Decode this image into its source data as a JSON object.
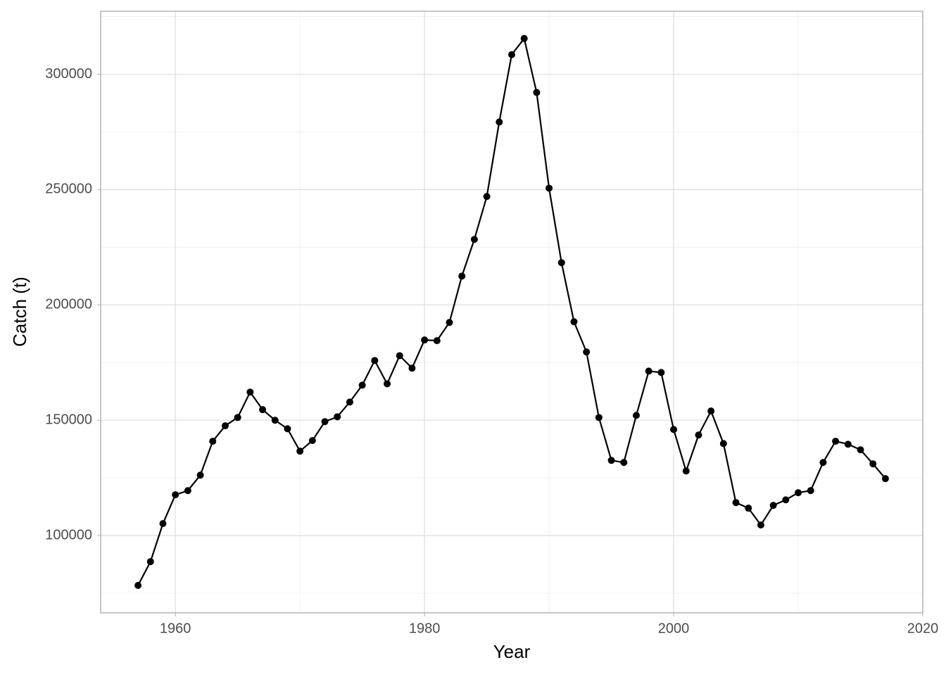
{
  "chart_data": {
    "type": "line",
    "x_label": "Year",
    "y_label": "Catch (t)",
    "x": [
      1957,
      1958,
      1959,
      1960,
      1961,
      1962,
      1963,
      1964,
      1965,
      1966,
      1967,
      1968,
      1969,
      1970,
      1971,
      1972,
      1973,
      1974,
      1975,
      1976,
      1977,
      1978,
      1979,
      1980,
      1981,
      1982,
      1983,
      1984,
      1985,
      1986,
      1987,
      1988,
      1989,
      1990,
      1991,
      1992,
      1993,
      1994,
      1995,
      1996,
      1997,
      1998,
      1999,
      2000,
      2001,
      2002,
      2003,
      2004,
      2005,
      2006,
      2007,
      2008,
      2009,
      2010,
      2011,
      2012,
      2013,
      2014,
      2015,
      2016,
      2017
    ],
    "series": [
      {
        "name": "Catch",
        "color": "#000000",
        "values": [
          78400,
          88700,
          105200,
          117700,
          119500,
          126200,
          140900,
          147600,
          151200,
          162200,
          154600,
          150000,
          146300,
          136600,
          141200,
          149400,
          151500,
          157900,
          165200,
          175900,
          165800,
          178000,
          172600,
          184800,
          184500,
          192400,
          212500,
          228400,
          247000,
          279300,
          308500,
          315500,
          292100,
          250600,
          218300,
          192700,
          179600,
          151200,
          132600,
          131700,
          152100,
          171300,
          170700,
          146000,
          128000,
          143600,
          154000,
          139900,
          114300,
          111900,
          104600,
          113100,
          115500,
          118600,
          119500,
          131700,
          140900,
          139600,
          137200,
          131100,
          124700
        ]
      }
    ],
    "xlim": [
      1954,
      2020
    ],
    "xticks": [
      1960,
      1980,
      2000,
      2020
    ],
    "xminor": [
      1970,
      1990,
      2010
    ],
    "ylim": [
      66500,
      327300
    ],
    "yticks": [
      100000,
      150000,
      200000,
      250000,
      300000
    ],
    "yminor": [
      75000,
      125000,
      175000,
      225000,
      275000,
      325000
    ],
    "grid": true
  }
}
